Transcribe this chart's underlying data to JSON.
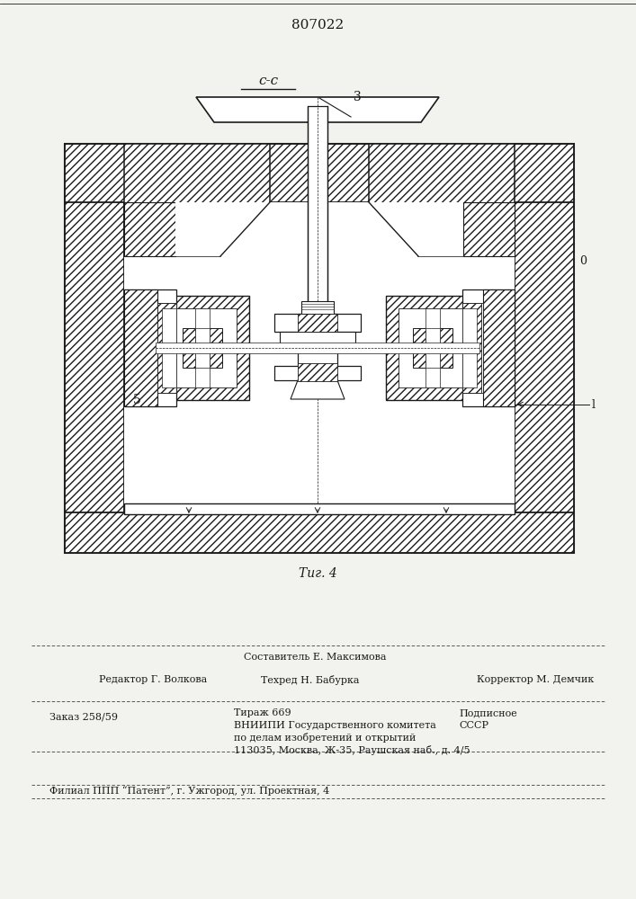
{
  "patent_number": "807022",
  "section_label": "c-c",
  "fig_label": "Τиг. 4",
  "label_3": "3",
  "label_5": "5",
  "label_0": "0",
  "label_l": "l",
  "editor_line": "Редактор Г. Волкова",
  "composer_line": "Составитель Е. Максимова",
  "techred_line": "Техред Н. Бабурка",
  "corrector_line": "Корректор М. Демчик",
  "order_line": "Заказ 258/59",
  "print_line": "Тираж 669",
  "podpisnoe": "Подписное",
  "vnipi_line1": "ВНИИПИ Государственного комитета",
  "sssr": "СССР",
  "vnipi_line2": "по делам изобретений и открытий",
  "vnipi_line3": "113035, Москва, Ж-35, Раушская наб., д. 4/5",
  "filial_line": "Филиал ППП “Патент”, г. Ужгород, ул. Проектная, 4",
  "bg_color": "#f2f2ee",
  "line_color": "#1a1a1a"
}
